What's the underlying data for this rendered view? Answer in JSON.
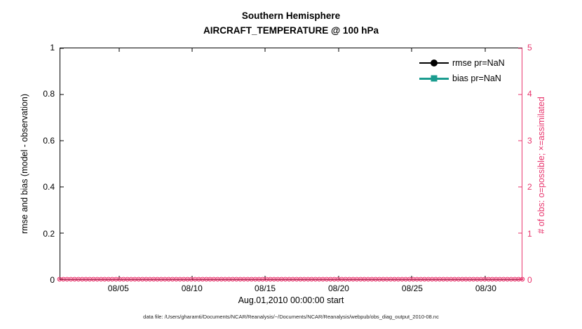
{
  "figure": {
    "title_line1": "Southern Hemisphere",
    "title_line2": "AIRCRAFT_TEMPERATURE @ 100 hPa",
    "xlabel": "Aug.01,2010 00:00:00 start",
    "ylabel_left": "rmse and bias (model - observation)",
    "ylabel_right": "# of obs: o=possible; ×=assimilated",
    "caption": "data file: /Users/gharamti/Documents/NCAR/Reanalysis/~/Documents/NCAR/Reanalysis/webpub/obs_diag_output_2010-08.nc",
    "colors": {
      "axis_left": "#000000",
      "axis_right": "#e8356d",
      "obs": "#e8356d",
      "rmse": "#000000",
      "bias": "#1a9c8f"
    }
  },
  "legend": {
    "items": [
      {
        "label": "rmse pr=NaN",
        "color": "#000000",
        "marker": "circle"
      },
      {
        "label": "bias pr=NaN",
        "color": "#1a9c8f",
        "marker": "square"
      }
    ]
  },
  "chart_data": {
    "type": "line",
    "title": "Southern Hemisphere",
    "subtitle": "AIRCRAFT_TEMPERATURE @ 100 hPa",
    "xlabel": "Aug.01,2010 00:00:00 start",
    "ylabel_left": "rmse and bias (model - observation)",
    "ylabel_right": "# of obs: o=possible; ×=assimilated",
    "xticks": [
      "08/05",
      "08/10",
      "08/15",
      "08/20",
      "08/25",
      "08/30"
    ],
    "xtick_positions_pct": [
      12.7,
      28.6,
      44.4,
      60.3,
      76.2,
      92.1
    ],
    "x_range_days": [
      "2010-08-01",
      "2010-09-01"
    ],
    "ylim_left": [
      0,
      1
    ],
    "yticks_left": [
      "0",
      "0.2",
      "0.4",
      "0.6",
      "0.8",
      "1"
    ],
    "ylim_right": [
      0,
      5
    ],
    "yticks_right": [
      "0",
      "1",
      "2",
      "3",
      "4",
      "5"
    ],
    "grid": false,
    "legend_position": "top-right",
    "series": [
      {
        "name": "rmse pr=NaN",
        "axis": "left",
        "color": "#000000",
        "marker": "circle",
        "values": "NaN",
        "plotted": false
      },
      {
        "name": "bias pr=NaN",
        "axis": "left",
        "color": "#1a9c8f",
        "marker": "square",
        "values": "NaN",
        "plotted": false
      },
      {
        "name": "# of obs possible (o)",
        "axis": "right",
        "color": "#e8356d",
        "marker": "o",
        "constant_value": 0,
        "marker_count": 124
      },
      {
        "name": "# of obs assimilated (×)",
        "axis": "right",
        "color": "#e8356d",
        "marker": "×",
        "constant_value": 0,
        "marker_count": 124
      }
    ]
  }
}
